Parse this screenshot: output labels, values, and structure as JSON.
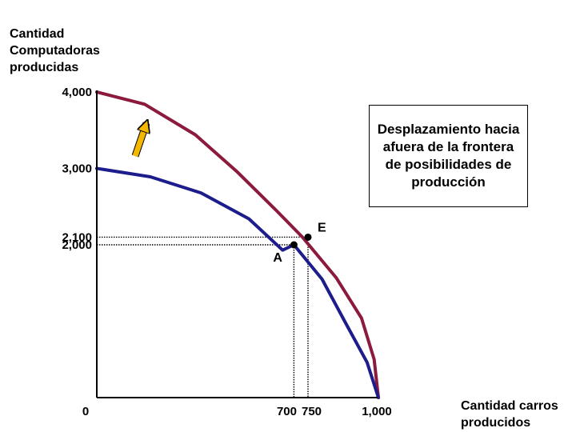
{
  "chart_data": {
    "type": "line",
    "ylabel": "Cantidad Computadoras producidas",
    "xlabel": "Cantidad carros producidos",
    "xlim": [
      0,
      1000
    ],
    "ylim": [
      0,
      4000
    ],
    "y_ticks": [
      {
        "value": 4000,
        "label": "4,000"
      },
      {
        "value": 3000,
        "label": "3,000"
      },
      {
        "value": 2100,
        "label": "2,100"
      },
      {
        "value": 2000,
        "label": "2,000"
      }
    ],
    "x_ticks": [
      {
        "value": 0,
        "label": "0"
      },
      {
        "value": 700,
        "label": "700"
      },
      {
        "value": 750,
        "label": "750"
      },
      {
        "value": 1000,
        "label": "1,000"
      }
    ],
    "series": [
      {
        "color": "#8b1a3c",
        "x": [
          0,
          170,
          350,
          500,
          640,
          730,
          850,
          940,
          985,
          1000
        ],
        "y": [
          4000,
          3840,
          3440,
          2950,
          2440,
          2100,
          1570,
          1040,
          500,
          0
        ]
      },
      {
        "color": "#1c1c8c",
        "x": [
          0,
          190,
          370,
          540,
          660,
          700,
          800,
          880,
          960,
          1000
        ],
        "y": [
          3000,
          2890,
          2680,
          2340,
          1930,
          2000,
          1550,
          1000,
          460,
          0
        ]
      }
    ],
    "points": [
      {
        "label": "E",
        "x": 750,
        "y": 2100
      },
      {
        "label": "A",
        "x": 700,
        "y": 2000
      }
    ],
    "annotation": "Desplazamiento hacia afuera de la frontera de posibilidades de producción",
    "arrow_color": "#f5b800",
    "grid": false,
    "legend": "none"
  }
}
